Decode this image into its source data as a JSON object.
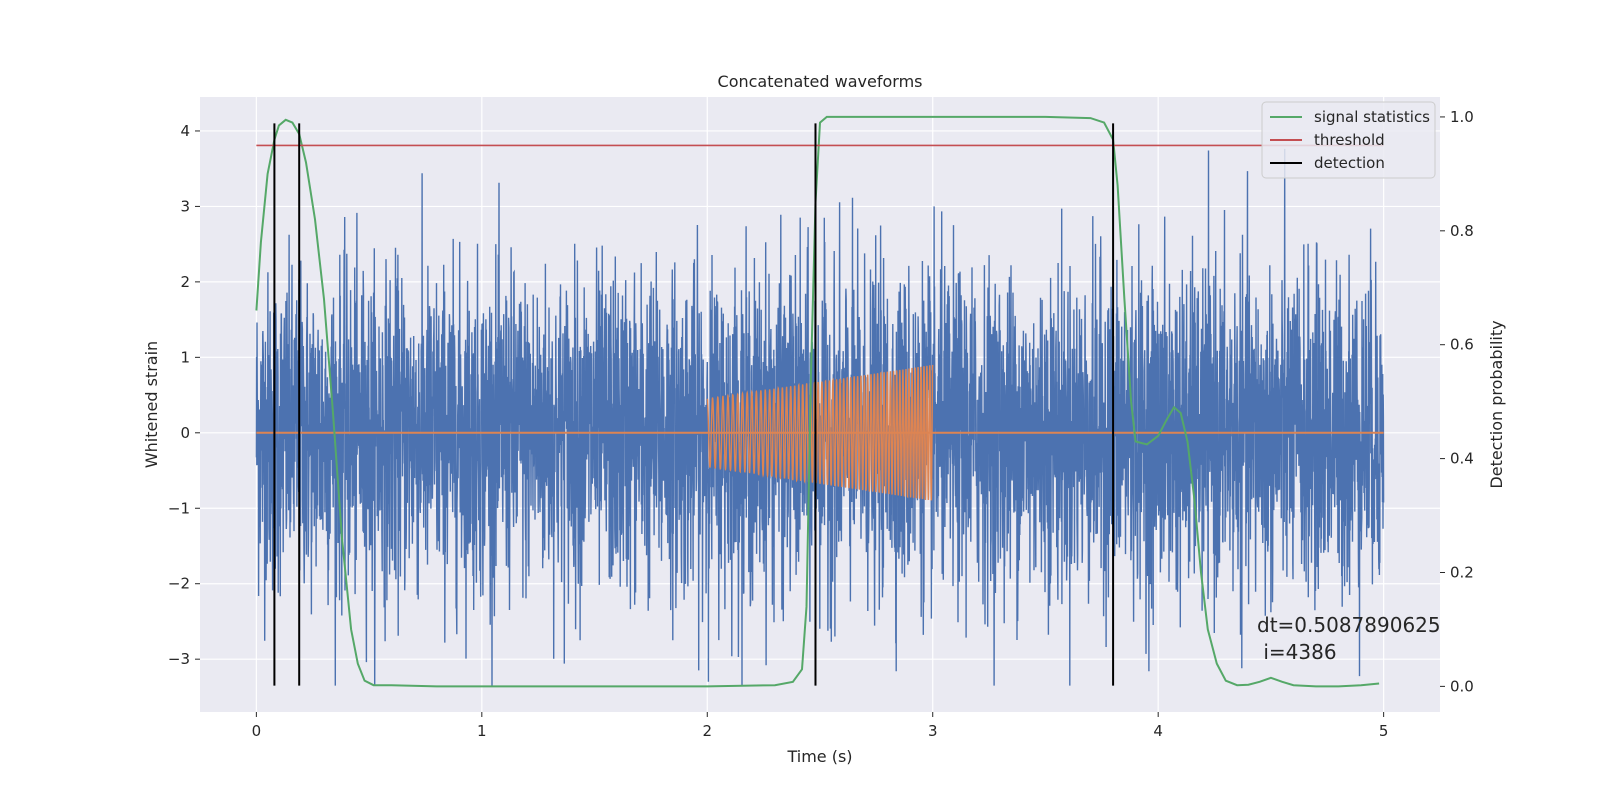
{
  "chart_data": {
    "type": "line",
    "title": "Concatenated waveforms",
    "xlabel": "Time (s)",
    "ylabel": "Whitened strain",
    "y2label": "Detection probability",
    "xlim": [
      -0.25,
      5.25
    ],
    "ylim": [
      -3.7,
      4.45
    ],
    "y2lim": [
      -0.045,
      1.035
    ],
    "x_ticks": [
      0,
      1,
      2,
      3,
      4,
      5
    ],
    "y_ticks": [
      -3,
      -2,
      -1,
      0,
      1,
      2,
      3,
      4
    ],
    "y2_ticks": [
      0.0,
      0.2,
      0.4,
      0.6,
      0.8,
      1.0
    ],
    "x_tick_labels": [
      "0",
      "1",
      "2",
      "3",
      "4",
      "5"
    ],
    "y_tick_labels": [
      "−3",
      "−2",
      "−1",
      "0",
      "1",
      "2",
      "3",
      "4"
    ],
    "y2_tick_labels": [
      "0.0",
      "0.2",
      "0.4",
      "0.6",
      "0.8",
      "1.0"
    ],
    "grid": true,
    "legend_position": "top-right",
    "colors": {
      "background": "#eaeaf2",
      "noise": "#4c72b0",
      "injection": "#dd8452",
      "statistic": "#55a868",
      "threshold": "#c44e52",
      "detection": "#000000"
    },
    "series": [
      {
        "name": "",
        "kind": "noise",
        "x_range": [
          0,
          5
        ],
        "typical_amplitude": 2.5,
        "peak_amplitude": 4.1,
        "min_value": -3.35
      },
      {
        "name": "",
        "kind": "chirp",
        "x": [
          2.0,
          3.0
        ],
        "amplitude": [
          0.45,
          0.9
        ],
        "cycles": 60
      },
      {
        "name": "signal statistics",
        "axis": "right",
        "x": [
          0,
          0.02,
          0.05,
          0.08,
          0.1,
          0.13,
          0.16,
          0.19,
          0.22,
          0.26,
          0.3,
          0.34,
          0.38,
          0.42,
          0.45,
          0.48,
          0.52,
          0.6,
          0.8,
          1.2,
          1.6,
          2.0,
          2.3,
          2.38,
          2.42,
          2.44,
          2.46,
          2.48,
          2.5,
          2.53,
          2.56,
          2.6,
          3.0,
          3.5,
          3.7,
          3.76,
          3.8,
          3.82,
          3.85,
          3.88,
          3.9,
          3.95,
          4.0,
          4.04,
          4.07,
          4.1,
          4.13,
          4.16,
          4.19,
          4.22,
          4.26,
          4.3,
          4.35,
          4.4,
          4.45,
          4.5,
          4.55,
          4.6,
          4.7,
          4.8,
          4.9,
          4.98
        ],
        "y": [
          0.66,
          0.78,
          0.9,
          0.96,
          0.985,
          0.995,
          0.99,
          0.97,
          0.92,
          0.82,
          0.68,
          0.48,
          0.26,
          0.1,
          0.04,
          0.01,
          0.002,
          0.002,
          0.0,
          0.0,
          0.0,
          0.0,
          0.002,
          0.008,
          0.03,
          0.14,
          0.55,
          0.85,
          0.99,
          1.0,
          1.0,
          1.0,
          1.0,
          1.0,
          0.998,
          0.99,
          0.96,
          0.88,
          0.68,
          0.5,
          0.43,
          0.425,
          0.44,
          0.47,
          0.49,
          0.48,
          0.43,
          0.33,
          0.2,
          0.1,
          0.04,
          0.01,
          0.002,
          0.003,
          0.008,
          0.015,
          0.008,
          0.002,
          0.0,
          0.0,
          0.002,
          0.005
        ]
      },
      {
        "name": "threshold",
        "axis": "right",
        "y": 0.95,
        "x": [
          0,
          5
        ]
      },
      {
        "name": "detection",
        "x": [
          0.08,
          0.19,
          2.48,
          3.8
        ]
      }
    ],
    "annotation": "dt=0.5087890625\n i=4386"
  }
}
